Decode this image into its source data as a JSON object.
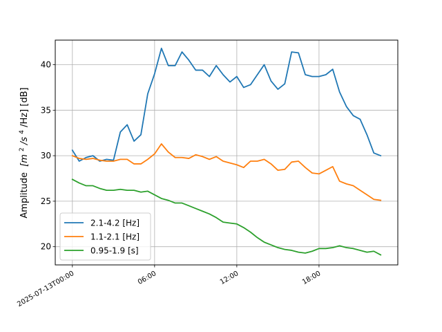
{
  "chart_data": {
    "type": "line",
    "ylabel_text": "Amplitude",
    "ylabel_unit_prefix": "[m",
    "ylabel_unit_sup1": "2",
    "ylabel_unit_mid": "/s",
    "ylabel_unit_sup2": "4",
    "ylabel_unit_suffix": "/Hz] [dB]",
    "xlim_hours": [
      -1.25,
      23.75
    ],
    "ylim": [
      18.0,
      42.7
    ],
    "xticks": [
      {
        "hours": 0,
        "label": "2025-07-13T00:00"
      },
      {
        "hours": 6,
        "label": "06:00"
      },
      {
        "hours": 12,
        "label": "12:00"
      },
      {
        "hours": 18,
        "label": "18:00"
      }
    ],
    "yticks": [
      20,
      25,
      30,
      35,
      40
    ],
    "grid": true,
    "legend_placement": "lower-left",
    "x_hours": [
      0,
      0.5,
      1,
      1.5,
      2,
      2.5,
      3,
      3.5,
      4,
      4.5,
      5,
      5.5,
      6,
      6.5,
      7,
      7.5,
      8,
      8.5,
      9,
      9.5,
      10,
      10.5,
      11,
      11.5,
      12,
      12.5,
      13,
      13.5,
      14,
      14.5,
      15,
      15.5,
      16,
      16.5,
      17,
      17.5,
      18,
      18.5,
      19,
      19.5,
      20,
      20.5,
      21,
      21.5,
      22,
      22.5
    ],
    "series": [
      {
        "name": "2.1-4.2 [Hz]",
        "color": "#1f77b4",
        "values": [
          30.6,
          29.4,
          29.8,
          30.0,
          29.4,
          29.6,
          29.5,
          32.6,
          33.4,
          31.6,
          32.3,
          36.8,
          39.0,
          41.8,
          39.9,
          39.9,
          41.4,
          40.5,
          39.4,
          39.4,
          38.7,
          39.9,
          38.9,
          38.1,
          38.7,
          37.5,
          37.8,
          38.9,
          40.0,
          38.2,
          37.3,
          37.9,
          41.4,
          41.3,
          38.9,
          38.7,
          38.7,
          38.9,
          39.5,
          37.0,
          35.4,
          34.4,
          34.0,
          32.3,
          30.3,
          30.0
        ]
      },
      {
        "name": "1.1-2.1 [Hz]",
        "color": "#ff7f0e",
        "values": [
          30.0,
          29.7,
          29.6,
          29.7,
          29.5,
          29.4,
          29.4,
          29.6,
          29.6,
          29.1,
          29.1,
          29.6,
          30.2,
          31.3,
          30.4,
          29.8,
          29.8,
          29.7,
          30.1,
          29.9,
          29.6,
          29.9,
          29.4,
          29.2,
          29.0,
          28.7,
          29.4,
          29.4,
          29.6,
          29.1,
          28.4,
          28.5,
          29.3,
          29.4,
          28.7,
          28.1,
          28.0,
          28.4,
          28.8,
          27.2,
          26.9,
          26.7,
          26.2,
          25.7,
          25.2,
          25.1
        ]
      },
      {
        "name": "0.95-1.9 [s]",
        "color": "#2ca02c",
        "values": [
          27.4,
          27.0,
          26.7,
          26.7,
          26.4,
          26.2,
          26.2,
          26.3,
          26.2,
          26.2,
          26.0,
          26.1,
          25.7,
          25.3,
          25.1,
          24.8,
          24.8,
          24.5,
          24.2,
          23.9,
          23.6,
          23.2,
          22.7,
          22.6,
          22.5,
          22.1,
          21.6,
          21.0,
          20.5,
          20.2,
          19.9,
          19.7,
          19.6,
          19.4,
          19.3,
          19.5,
          19.8,
          19.8,
          19.9,
          20.1,
          19.9,
          19.8,
          19.6,
          19.4,
          19.5,
          19.1
        ]
      }
    ]
  }
}
